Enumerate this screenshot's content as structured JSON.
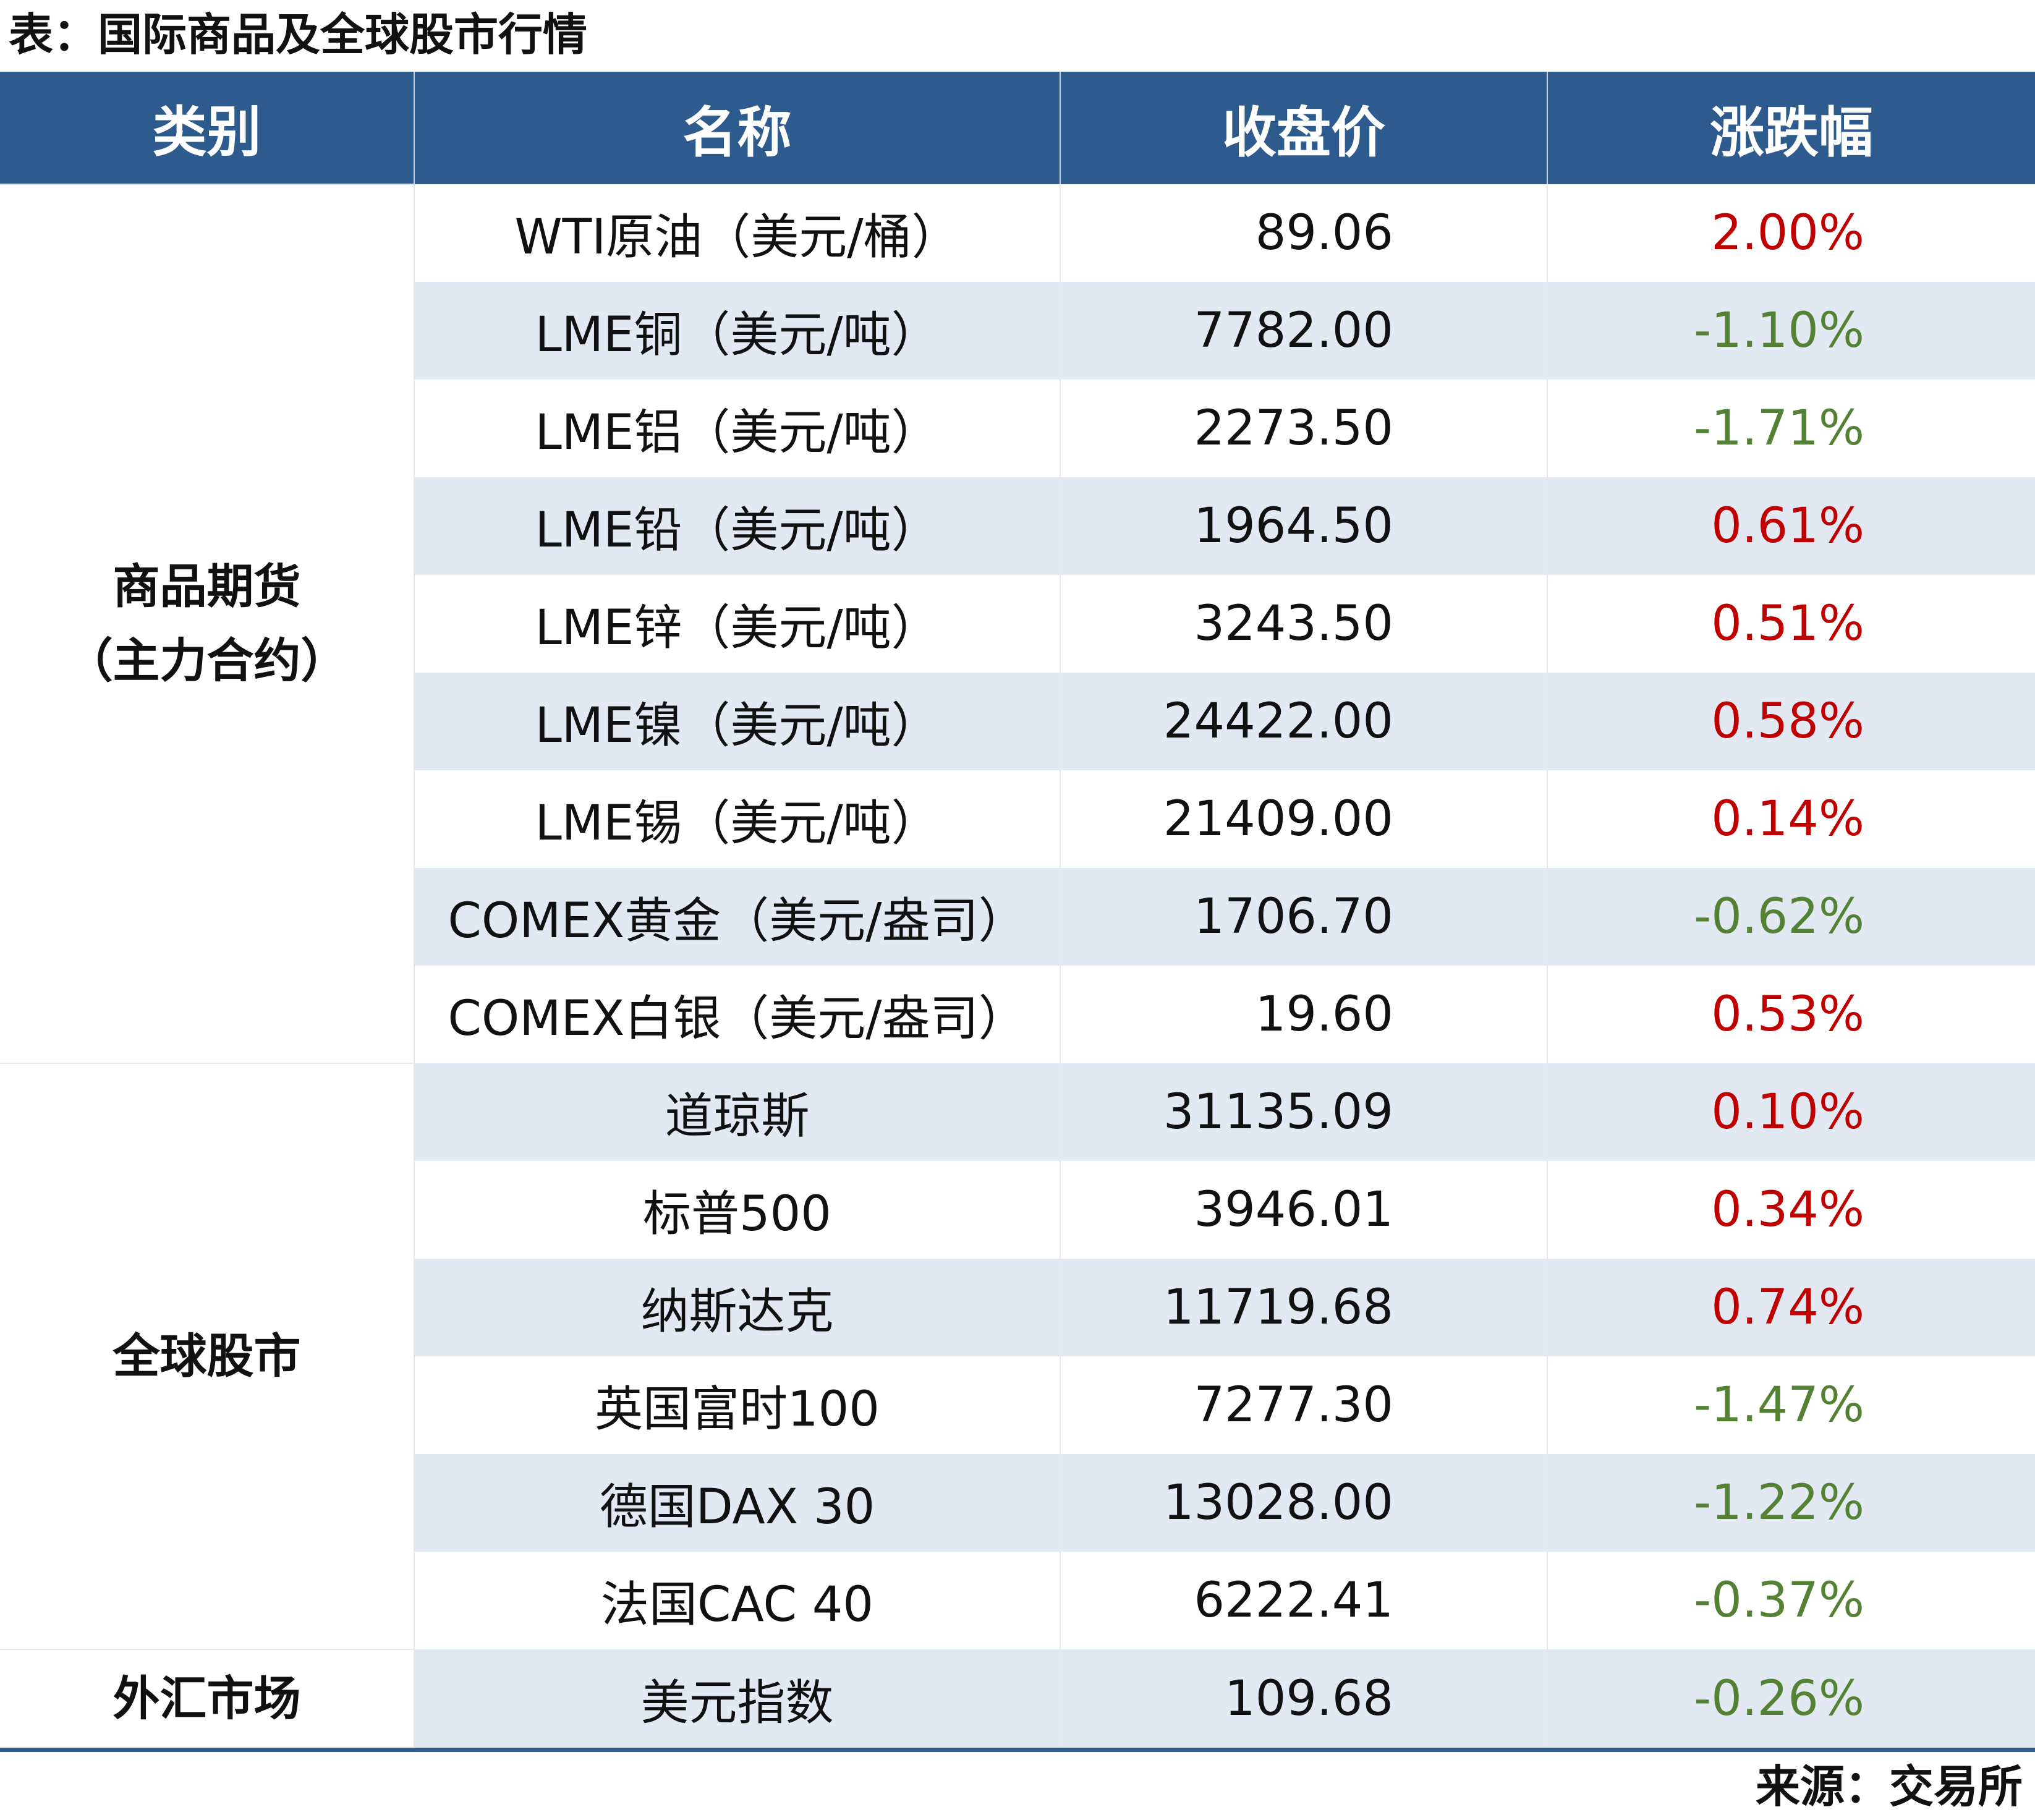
{
  "caption": "表：国际商品及全球股市行情",
  "headers": {
    "category": "类别",
    "name": "名称",
    "close": "收盘价",
    "change": "涨跌幅"
  },
  "groups": [
    {
      "category": "商品期货\n（主力合约）",
      "rows": [
        {
          "name": "WTI原油（美元/桶）",
          "close": "89.06",
          "change": "2.00%",
          "direction": "up"
        },
        {
          "name": "LME铜（美元/吨）",
          "close": "7782.00",
          "change": "-1.10%",
          "direction": "down"
        },
        {
          "name": "LME铝（美元/吨）",
          "close": "2273.50",
          "change": "-1.71%",
          "direction": "down"
        },
        {
          "name": "LME铅（美元/吨）",
          "close": "1964.50",
          "change": "0.61%",
          "direction": "up"
        },
        {
          "name": "LME锌（美元/吨）",
          "close": "3243.50",
          "change": "0.51%",
          "direction": "up"
        },
        {
          "name": "LME镍（美元/吨）",
          "close": "24422.00",
          "change": "0.58%",
          "direction": "up"
        },
        {
          "name": "LME锡（美元/吨）",
          "close": "21409.00",
          "change": "0.14%",
          "direction": "up"
        },
        {
          "name": "COMEX黄金（美元/盎司）",
          "close": "1706.70",
          "change": "-0.62%",
          "direction": "down"
        },
        {
          "name": "COMEX白银（美元/盎司）",
          "close": "19.60",
          "change": "0.53%",
          "direction": "up"
        }
      ]
    },
    {
      "category": "全球股市",
      "rows": [
        {
          "name": "道琼斯",
          "close": "31135.09",
          "change": "0.10%",
          "direction": "up"
        },
        {
          "name": "标普500",
          "close": "3946.01",
          "change": "0.34%",
          "direction": "up"
        },
        {
          "name": "纳斯达克",
          "close": "11719.68",
          "change": "0.74%",
          "direction": "up"
        },
        {
          "name": "英国富时100",
          "close": "7277.30",
          "change": "-1.47%",
          "direction": "down"
        },
        {
          "name": "德国DAX 30",
          "close": "13028.00",
          "change": "-1.22%",
          "direction": "down"
        },
        {
          "name": "法国CAC 40",
          "close": "6222.41",
          "change": "-0.37%",
          "direction": "down"
        }
      ]
    },
    {
      "category": "外汇市场",
      "rows": [
        {
          "name": "美元指数",
          "close": "109.68",
          "change": "-0.26%",
          "direction": "down"
        }
      ]
    }
  ],
  "source": "来源：交易所",
  "colors": {
    "header_bg": "#2e5b8e",
    "stripe": "#e3e9f2",
    "up": "#c00000",
    "down": "#548235"
  }
}
